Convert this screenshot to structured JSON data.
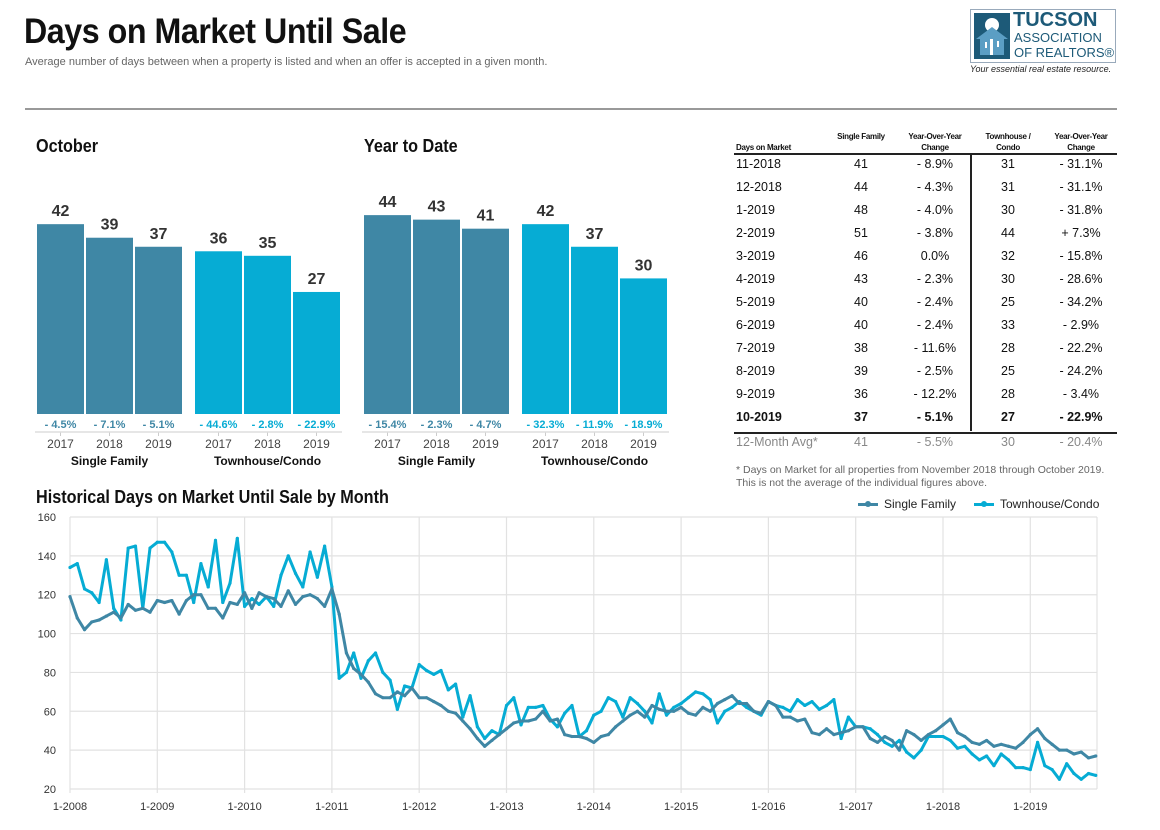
{
  "header": {
    "title": "Days on Market Until Sale",
    "subtitle": "Average number of days between when a property is listed and when an offer is accepted in a given month."
  },
  "logo": {
    "line1": "TUCSON",
    "line2": "ASSOCIATION",
    "line3": "OF REALTORS®",
    "tagline": "Your essential real estate resource."
  },
  "colors": {
    "single_family": "#3f87a5",
    "townhouse": "#06acd4"
  },
  "chart_data": [
    {
      "type": "bar",
      "title": "October",
      "groups": [
        {
          "name": "Single Family",
          "categories": [
            "2017",
            "2018",
            "2019"
          ],
          "values": [
            42,
            39,
            37
          ],
          "changes": [
            "- 4.5%",
            "- 7.1%",
            "- 5.1%"
          ]
        },
        {
          "name": "Townhouse/Condo",
          "categories": [
            "2017",
            "2018",
            "2019"
          ],
          "values": [
            36,
            35,
            27
          ],
          "changes": [
            "- 44.6%",
            "- 2.8%",
            "- 22.9%"
          ]
        }
      ]
    },
    {
      "type": "bar",
      "title": "Year to Date",
      "groups": [
        {
          "name": "Single Family",
          "categories": [
            "2017",
            "2018",
            "2019"
          ],
          "values": [
            44,
            43,
            41
          ],
          "changes": [
            "- 15.4%",
            "- 2.3%",
            "- 4.7%"
          ]
        },
        {
          "name": "Townhouse/Condo",
          "categories": [
            "2017",
            "2018",
            "2019"
          ],
          "values": [
            42,
            37,
            30
          ],
          "changes": [
            "- 32.3%",
            "- 11.9%",
            "- 18.9%"
          ]
        }
      ]
    },
    {
      "type": "line",
      "title": "Historical Days on Market Until Sale by Month",
      "x_start": "1-2008",
      "x_end": "10-2019",
      "x_ticks": [
        "1-2008",
        "1-2009",
        "1-2010",
        "1-2011",
        "1-2012",
        "1-2013",
        "1-2014",
        "1-2015",
        "1-2016",
        "1-2017",
        "1-2018",
        "1-2019"
      ],
      "y_ticks": [
        160,
        140,
        120,
        100,
        80,
        60,
        40,
        20
      ],
      "ylim": [
        20,
        160
      ],
      "grid": true,
      "legend": "top-right",
      "series": [
        {
          "name": "Single Family",
          "values": [
            119,
            108,
            102,
            106,
            107,
            109,
            111,
            108,
            115,
            112,
            113,
            111,
            117,
            116,
            117,
            110,
            117,
            120,
            120,
            113,
            113,
            108,
            116,
            115,
            121,
            113,
            121,
            119,
            118,
            114,
            122,
            115,
            119,
            120,
            118,
            114,
            123,
            110,
            90,
            82,
            79,
            75,
            69,
            67,
            67,
            70,
            68,
            72,
            67,
            67,
            65,
            63,
            60,
            59,
            55,
            51,
            46,
            42,
            45,
            48,
            51,
            54,
            55,
            55,
            56,
            60,
            55,
            56,
            48,
            47,
            47,
            46,
            44,
            47,
            48,
            52,
            55,
            58,
            60,
            57,
            63,
            61,
            60,
            60,
            62,
            59,
            58,
            62,
            60,
            64,
            66,
            68,
            64,
            64,
            60,
            59,
            65,
            63,
            57,
            57,
            55,
            56,
            49,
            48,
            51,
            48,
            49,
            50,
            52,
            52,
            46,
            44,
            47,
            45,
            40,
            50,
            48,
            45,
            48,
            50,
            53,
            56,
            49,
            47,
            44,
            43,
            45,
            42,
            43,
            42,
            41,
            44,
            48,
            51,
            46,
            43,
            40,
            40,
            38,
            39,
            36,
            37
          ]
        },
        {
          "name": "Townhouse/Condo",
          "values": [
            134,
            136,
            123,
            121,
            116,
            138,
            113,
            107,
            144,
            145,
            113,
            144,
            147,
            147,
            142,
            130,
            130,
            116,
            136,
            124,
            148,
            116,
            126,
            149,
            114,
            118,
            115,
            119,
            114,
            130,
            140,
            131,
            124,
            142,
            129,
            145,
            124,
            77,
            80,
            90,
            77,
            86,
            90,
            80,
            76,
            61,
            73,
            72,
            84,
            81,
            79,
            81,
            71,
            74,
            57,
            68,
            52,
            46,
            50,
            48,
            63,
            67,
            53,
            62,
            62,
            63,
            56,
            52,
            59,
            63,
            47,
            50,
            58,
            60,
            67,
            65,
            57,
            67,
            64,
            60,
            54,
            69,
            58,
            62,
            64,
            67,
            70,
            69,
            66,
            54,
            60,
            62,
            65,
            62,
            60,
            58,
            65,
            63,
            62,
            60,
            66,
            63,
            65,
            61,
            63,
            66,
            46,
            57,
            52,
            52,
            51,
            48,
            44,
            42,
            45,
            39,
            36,
            40,
            47,
            47,
            47,
            45,
            41,
            42,
            38,
            35,
            37,
            32,
            38,
            35,
            31,
            31,
            30,
            44,
            32,
            30,
            25,
            33,
            28,
            25,
            28,
            27
          ]
        }
      ]
    }
  ],
  "table": {
    "headers": [
      "Days on Market",
      "Single Family",
      "Year-Over-Year Change",
      "Townhouse / Condo",
      "Year-Over-Year Change"
    ],
    "rows": [
      [
        "11-2018",
        "41",
        "- 8.9%",
        "31",
        "- 31.1%"
      ],
      [
        "12-2018",
        "44",
        "- 4.3%",
        "31",
        "- 31.1%"
      ],
      [
        "1-2019",
        "48",
        "- 4.0%",
        "30",
        "- 31.8%"
      ],
      [
        "2-2019",
        "51",
        "- 3.8%",
        "44",
        "+ 7.3%"
      ],
      [
        "3-2019",
        "46",
        "0.0%",
        "32",
        "- 15.8%"
      ],
      [
        "4-2019",
        "43",
        "- 2.3%",
        "30",
        "- 28.6%"
      ],
      [
        "5-2019",
        "40",
        "- 2.4%",
        "25",
        "- 34.2%"
      ],
      [
        "6-2019",
        "40",
        "- 2.4%",
        "33",
        "- 2.9%"
      ],
      [
        "7-2019",
        "38",
        "- 11.6%",
        "28",
        "- 22.2%"
      ],
      [
        "8-2019",
        "39",
        "- 2.5%",
        "25",
        "- 24.2%"
      ],
      [
        "9-2019",
        "36",
        "- 12.2%",
        "28",
        "- 3.4%"
      ],
      [
        "10-2019",
        "37",
        "- 5.1%",
        "27",
        "- 22.9%"
      ]
    ],
    "average": [
      "12-Month Avg*",
      "41",
      "- 5.5%",
      "30",
      "- 20.4%"
    ],
    "footnote": "* Days on Market for all properties from November 2018 through October 2019. This is not the average of the individual figures above."
  }
}
